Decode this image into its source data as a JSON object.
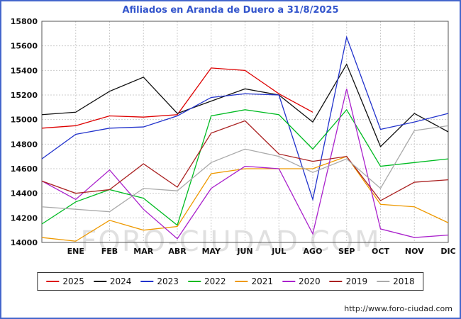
{
  "header": {
    "title": "Afiliados en Aranda de Duero a 31/8/2025"
  },
  "watermark": "FORO-CIUDAD.COM",
  "footer": {
    "url": "http://www.foro-ciudad.com"
  },
  "colors": {
    "page_border": "#4466cc",
    "title_text": "#3355cc",
    "gridline": "#cccccc",
    "watermark_text": "#c8c8c8"
  },
  "chart_data": {
    "type": "line",
    "title": "Afiliados en Aranda de Duero a 31/8/2025",
    "categories": [
      "",
      "ENE",
      "FEB",
      "MAR",
      "ABR",
      "MAY",
      "JUN",
      "JUL",
      "AGO",
      "SEP",
      "OCT",
      "NOV",
      "DIC"
    ],
    "ylabel": "",
    "xlabel": "",
    "ylim": [
      14000,
      15800
    ],
    "ytick_step": 200,
    "grid": true,
    "legend_position": "bottom",
    "series": [
      {
        "name": "2025",
        "color": "#dd0000",
        "values": [
          14930,
          14950,
          15030,
          15020,
          15040,
          15420,
          15400,
          15210,
          15060,
          null,
          null,
          null,
          null
        ]
      },
      {
        "name": "2024",
        "color": "#111111",
        "values": [
          15040,
          15060,
          15230,
          15345,
          15050,
          15150,
          15250,
          15200,
          14980,
          15450,
          14780,
          15050,
          14900
        ]
      },
      {
        "name": "2023",
        "color": "#2233cc",
        "values": [
          14680,
          14880,
          14930,
          14940,
          15030,
          15180,
          15210,
          15200,
          14350,
          15670,
          14920,
          14980,
          15050
        ]
      },
      {
        "name": "2022",
        "color": "#00bb22",
        "values": [
          14150,
          14330,
          14430,
          14360,
          14140,
          15030,
          15080,
          15040,
          14760,
          15080,
          14620,
          14650,
          14680
        ]
      },
      {
        "name": "2021",
        "color": "#ee9900",
        "values": [
          14040,
          14010,
          14180,
          14100,
          14130,
          14560,
          14600,
          14600,
          14600,
          14700,
          14310,
          14290,
          14160
        ]
      },
      {
        "name": "2020",
        "color": "#aa22cc",
        "values": [
          14500,
          14350,
          14590,
          14270,
          14030,
          14440,
          14620,
          14600,
          14070,
          15250,
          14110,
          14040,
          14060
        ]
      },
      {
        "name": "2019",
        "color": "#aa2222",
        "values": [
          14500,
          14400,
          14430,
          14640,
          14450,
          14890,
          14990,
          14720,
          14660,
          14700,
          14340,
          14490,
          14510
        ]
      },
      {
        "name": "2018",
        "color": "#aaaaaa",
        "values": [
          14290,
          14270,
          14250,
          14440,
          14420,
          14650,
          14760,
          14700,
          14570,
          14680,
          14440,
          14910,
          14950
        ]
      }
    ]
  }
}
